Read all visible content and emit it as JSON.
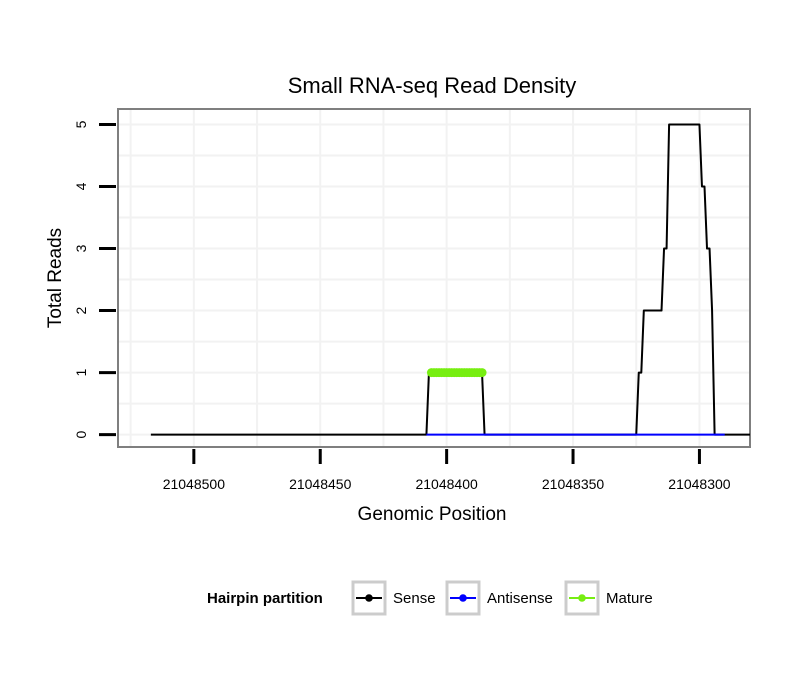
{
  "chart_data": {
    "type": "line",
    "title": "Small RNA-seq Read Density",
    "xlabel": "Genomic Position",
    "ylabel": "Total Reads",
    "xlim": [
      21048530,
      21048280
    ],
    "ylim": [
      -0.2,
      5.25
    ],
    "x_ticks": [
      21048500,
      21048450,
      21048400,
      21048350,
      21048300
    ],
    "x_tick_labels": [
      "21048500",
      "21048450",
      "21048400",
      "21048350",
      "21048300"
    ],
    "y_ticks": [
      0,
      1,
      2,
      3,
      4,
      5
    ],
    "y_tick_labels": [
      "0",
      "1",
      "2",
      "3",
      "4",
      "5"
    ],
    "grid": true,
    "legend": {
      "title": "Hairpin partition",
      "position": "bottom",
      "entries": [
        "Sense",
        "Antisense",
        "Mature"
      ]
    },
    "series": [
      {
        "name": "Sense",
        "color": "#000000",
        "style": "line",
        "points": [
          [
            21048517,
            0
          ],
          [
            21048408,
            0
          ],
          [
            21048407,
            1
          ],
          [
            21048386,
            1
          ],
          [
            21048385,
            0
          ],
          [
            21048325,
            0
          ],
          [
            21048324,
            1
          ],
          [
            21048323,
            1
          ],
          [
            21048322,
            2
          ],
          [
            21048315,
            2
          ],
          [
            21048314,
            3
          ],
          [
            21048313,
            3
          ],
          [
            21048312,
            5
          ],
          [
            21048300,
            5
          ],
          [
            21048299,
            4
          ],
          [
            21048298,
            4
          ],
          [
            21048297,
            3
          ],
          [
            21048296,
            3
          ],
          [
            21048295,
            2
          ],
          [
            21048294,
            0
          ],
          [
            21048290,
            0
          ],
          [
            21048280,
            0
          ]
        ]
      },
      {
        "name": "Antisense",
        "color": "#0000ff",
        "style": "line",
        "points": [
          [
            21048408,
            0
          ],
          [
            21048385,
            0
          ],
          [
            21048325,
            0
          ],
          [
            21048290,
            0
          ]
        ]
      },
      {
        "name": "Mature",
        "color": "#77ee11",
        "style": "points",
        "points": [
          [
            21048406,
            1
          ],
          [
            21048405,
            1
          ],
          [
            21048404,
            1
          ],
          [
            21048403,
            1
          ],
          [
            21048402,
            1
          ],
          [
            21048401,
            1
          ],
          [
            21048400,
            1
          ],
          [
            21048399,
            1
          ],
          [
            21048398,
            1
          ],
          [
            21048397,
            1
          ],
          [
            21048396,
            1
          ],
          [
            21048395,
            1
          ],
          [
            21048394,
            1
          ],
          [
            21048393,
            1
          ],
          [
            21048392,
            1
          ],
          [
            21048391,
            1
          ],
          [
            21048390,
            1
          ],
          [
            21048389,
            1
          ],
          [
            21048388,
            1
          ],
          [
            21048387,
            1
          ],
          [
            21048386,
            1
          ]
        ]
      }
    ]
  }
}
